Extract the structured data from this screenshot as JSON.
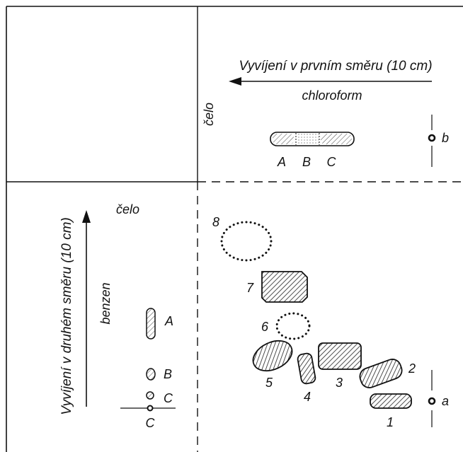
{
  "top": {
    "title": "Vyvíjení v prvním směru (10 cm)",
    "solvent": "chloroform",
    "front": "čelo",
    "strip_labels": [
      "A",
      "B",
      "C"
    ],
    "origin_label": "b"
  },
  "left": {
    "title": "Vyvíjení v druhém směru (10 cm)",
    "solvent": "benzen",
    "front": "čelo",
    "spot_labels": [
      "A",
      "B",
      "C"
    ],
    "origin_label": "C"
  },
  "main": {
    "spot_labels": [
      "1",
      "2",
      "3",
      "4",
      "5",
      "6",
      "7",
      "8"
    ],
    "origin_label": "a"
  }
}
